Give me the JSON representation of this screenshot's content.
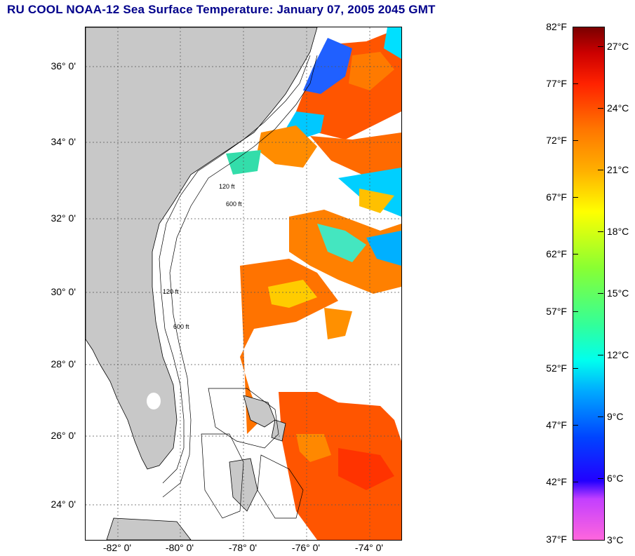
{
  "title": "RU COOL  NOAA-12  Sea Surface Temperature:  January 07, 2005 2045 GMT",
  "map": {
    "lat_labels": [
      "36° 0'",
      "34° 0'",
      "32° 0'",
      "30° 0'",
      "28° 0'",
      "26° 0'",
      "24° 0'"
    ],
    "lon_labels": [
      "-82° 0'",
      "-80° 0'",
      "-78° 0'",
      "-76° 0'",
      "-74° 0'"
    ],
    "contour_labels": [
      "120 ft",
      "600 ft"
    ],
    "colors": {
      "land": "#c8c8c8",
      "ocean_no_data": "#ffffff",
      "warm": "#ff6a00",
      "cool": "#00c0ff"
    }
  },
  "colorbar": {
    "fahrenheit_labels": [
      "82°F",
      "77°F",
      "72°F",
      "67°F",
      "62°F",
      "57°F",
      "52°F",
      "47°F",
      "42°F",
      "37°F"
    ],
    "celsius_labels": [
      "27°C",
      "24°C",
      "21°C",
      "18°C",
      "15°C",
      "12°C",
      "9°C",
      "6°C",
      "3°C"
    ]
  }
}
